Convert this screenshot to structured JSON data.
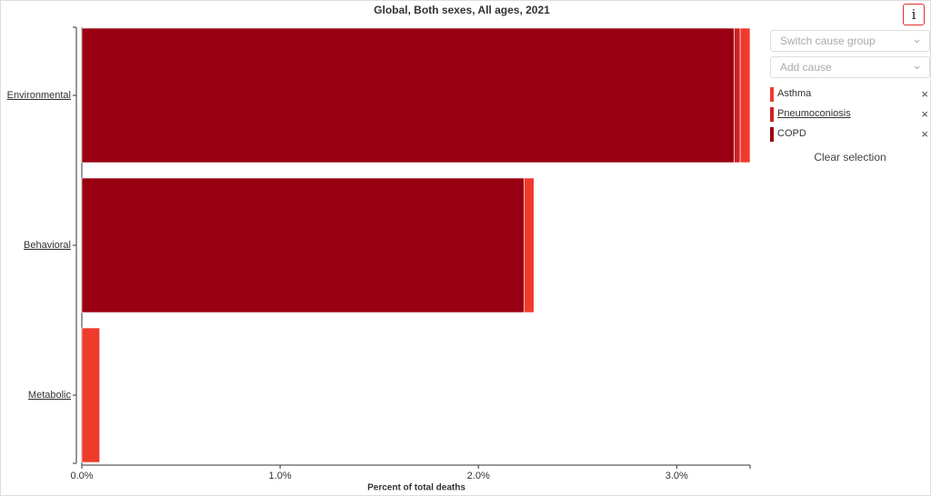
{
  "chart_data": {
    "type": "bar",
    "orientation": "horizontal",
    "stacked": true,
    "title": "Global, Both sexes, All ages, 2021",
    "x_label": "Percent of total deaths",
    "categories": [
      "Environmental",
      "Behavioral",
      "Metabolic"
    ],
    "series": [
      {
        "name": "COPD",
        "color": "#990011",
        "values": [
          3.29,
          2.23,
          0
        ]
      },
      {
        "name": "Pneumoconiosis",
        "color": "#cc2222",
        "values": [
          0.03,
          0,
          0
        ]
      },
      {
        "name": "Asthma",
        "color": "#ef3b2c",
        "values": [
          0.05,
          0.05,
          0.09
        ]
      }
    ],
    "xlim": [
      0,
      3.37
    ],
    "xticks": [
      {
        "value": 0,
        "label": "0.0%"
      },
      {
        "value": 1,
        "label": "1.0%"
      },
      {
        "value": 2,
        "label": "2.0%"
      },
      {
        "value": 3,
        "label": "3.0%"
      }
    ]
  },
  "controls": {
    "info": "i",
    "switch_group": "Switch cause group",
    "add_cause": "Add cause",
    "remove": "×",
    "clear": "Clear selection"
  }
}
